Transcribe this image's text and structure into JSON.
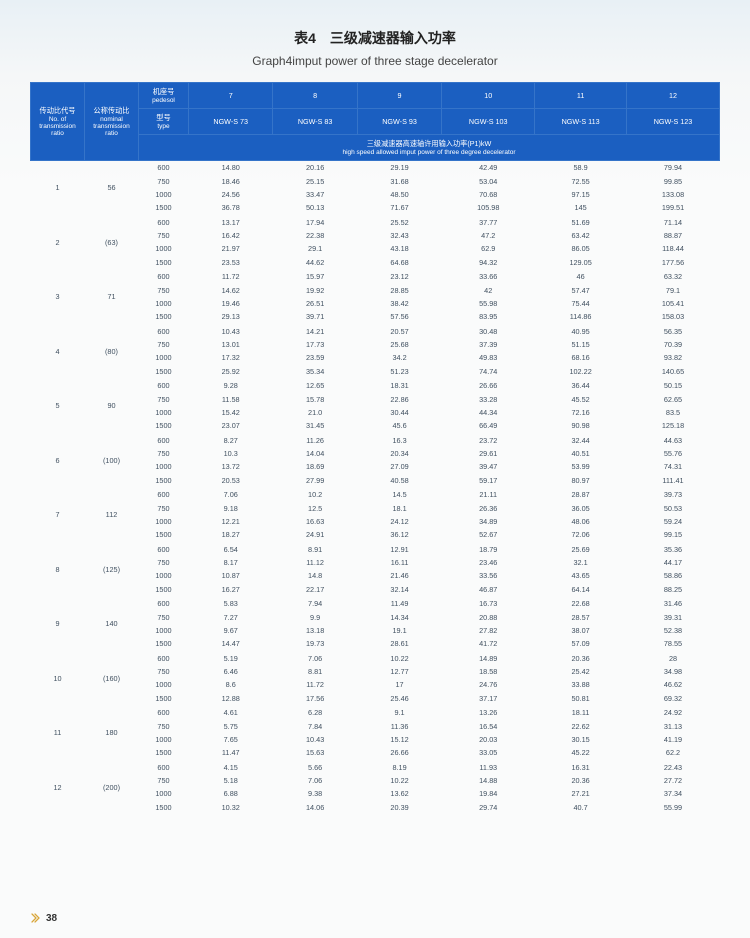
{
  "title_cn": "表4　三级减速器输入功率",
  "title_en": "Graph4imput power of three stage decelerator",
  "header": {
    "col1_cn": "传动比代号",
    "col1_en": "No. of transmission ratio",
    "col2_cn": "公称传动比",
    "col2_en": "nominal transmission ratio",
    "row1_col3_cn": "机座号",
    "row1_col3_en": "pedesol",
    "row2_col3_cn": "型号",
    "row2_col3_en": "type",
    "seat_numbers": [
      "7",
      "8",
      "9",
      "10",
      "11",
      "12"
    ],
    "models": [
      "NGW-S 73",
      "NGW-S 83",
      "NGW-S 93",
      "NGW-S 103",
      "NGW-S 113",
      "NGW-S 123"
    ],
    "band_cn": "三级减速器高速轴许用输入功率(P1)kW",
    "band_en": "high speed allowed imput power of three degree decelerator"
  },
  "groups": [
    {
      "no": "1",
      "ratio": "56",
      "rows": [
        [
          "600",
          "14.80",
          "20.16",
          "29.19",
          "42.49",
          "58.9",
          "79.94"
        ],
        [
          "750",
          "18.46",
          "25.15",
          "31.68",
          "53.04",
          "72.55",
          "99.85"
        ],
        [
          "1000",
          "24.56",
          "33.47",
          "48.50",
          "70.68",
          "97.15",
          "133.08"
        ],
        [
          "1500",
          "36.78",
          "50.13",
          "71.67",
          "105.98",
          "145",
          "199.51"
        ]
      ]
    },
    {
      "no": "2",
      "ratio": "(63)",
      "rows": [
        [
          "600",
          "13.17",
          "17.94",
          "25.52",
          "37.77",
          "51.69",
          "71.14"
        ],
        [
          "750",
          "16.42",
          "22.38",
          "32.43",
          "47.2",
          "63.42",
          "88.87"
        ],
        [
          "1000",
          "21.97",
          "29.1",
          "43.18",
          "62.9",
          "86.05",
          "118.44"
        ],
        [
          "1500",
          "23.53",
          "44.62",
          "64.68",
          "94.32",
          "129.05",
          "177.56"
        ]
      ]
    },
    {
      "no": "3",
      "ratio": "71",
      "rows": [
        [
          "600",
          "11.72",
          "15.97",
          "23.12",
          "33.66",
          "46",
          "63.32"
        ],
        [
          "750",
          "14.62",
          "19.92",
          "28.85",
          "42",
          "57.47",
          "79.1"
        ],
        [
          "1000",
          "19.46",
          "26.51",
          "38.42",
          "55.98",
          "75.44",
          "105.41"
        ],
        [
          "1500",
          "29.13",
          "39.71",
          "57.56",
          "83.95",
          "114.86",
          "158.03"
        ]
      ]
    },
    {
      "no": "4",
      "ratio": "(80)",
      "rows": [
        [
          "600",
          "10.43",
          "14.21",
          "20.57",
          "30.48",
          "40.95",
          "56.35"
        ],
        [
          "750",
          "13.01",
          "17.73",
          "25.68",
          "37.39",
          "51.15",
          "70.39"
        ],
        [
          "1000",
          "17.32",
          "23.59",
          "34.2",
          "49.83",
          "68.16",
          "93.82"
        ],
        [
          "1500",
          "25.92",
          "35.34",
          "51.23",
          "74.74",
          "102.22",
          "140.65"
        ]
      ]
    },
    {
      "no": "5",
      "ratio": "90",
      "rows": [
        [
          "600",
          "9.28",
          "12.65",
          "18.31",
          "26.66",
          "36.44",
          "50.15"
        ],
        [
          "750",
          "11.58",
          "15.78",
          "22.86",
          "33.28",
          "45.52",
          "62.65"
        ],
        [
          "1000",
          "15.42",
          "21.0",
          "30.44",
          "44.34",
          "72.16",
          "83.5"
        ],
        [
          "1500",
          "23.07",
          "31.45",
          "45.6",
          "66.49",
          "90.98",
          "125.18"
        ]
      ]
    },
    {
      "no": "6",
      "ratio": "(100)",
      "rows": [
        [
          "600",
          "8.27",
          "11.26",
          "16.3",
          "23.72",
          "32.44",
          "44.63"
        ],
        [
          "750",
          "10.3",
          "14.04",
          "20.34",
          "29.61",
          "40.51",
          "55.76"
        ],
        [
          "1000",
          "13.72",
          "18.69",
          "27.09",
          "39.47",
          "53.99",
          "74.31"
        ],
        [
          "1500",
          "20.53",
          "27.99",
          "40.58",
          "59.17",
          "80.97",
          "111.41"
        ]
      ]
    },
    {
      "no": "7",
      "ratio": "112",
      "rows": [
        [
          "600",
          "7.06",
          "10.2",
          "14.5",
          "21.11",
          "28.87",
          "39.73"
        ],
        [
          "750",
          "9.18",
          "12.5",
          "18.1",
          "26.36",
          "36.05",
          "50.53"
        ],
        [
          "1000",
          "12.21",
          "16.63",
          "24.12",
          "34.89",
          "48.06",
          "59.24"
        ],
        [
          "1500",
          "18.27",
          "24.91",
          "36.12",
          "52.67",
          "72.06",
          "99.15"
        ]
      ]
    },
    {
      "no": "8",
      "ratio": "(125)",
      "rows": [
        [
          "600",
          "6.54",
          "8.91",
          "12.91",
          "18.79",
          "25.69",
          "35.36"
        ],
        [
          "750",
          "8.17",
          "11.12",
          "16.11",
          "23.46",
          "32.1",
          "44.17"
        ],
        [
          "1000",
          "10.87",
          "14.8",
          "21.46",
          "33.56",
          "43.65",
          "58.86"
        ],
        [
          "1500",
          "16.27",
          "22.17",
          "32.14",
          "46.87",
          "64.14",
          "88.25"
        ]
      ]
    },
    {
      "no": "9",
      "ratio": "140",
      "rows": [
        [
          "600",
          "5.83",
          "7.94",
          "11.49",
          "16.73",
          "22.68",
          "31.46"
        ],
        [
          "750",
          "7.27",
          "9.9",
          "14.34",
          "20.88",
          "28.57",
          "39.31"
        ],
        [
          "1000",
          "9.67",
          "13.18",
          "19.1",
          "27.82",
          "38.07",
          "52.38"
        ],
        [
          "1500",
          "14.47",
          "19.73",
          "28.61",
          "41.72",
          "57.09",
          "78.55"
        ]
      ]
    },
    {
      "no": "10",
      "ratio": "(160)",
      "rows": [
        [
          "600",
          "5.19",
          "7.06",
          "10.22",
          "14.89",
          "20.36",
          "28"
        ],
        [
          "750",
          "6.46",
          "8.81",
          "12.77",
          "18.58",
          "25.42",
          "34.98"
        ],
        [
          "1000",
          "8.6",
          "11.72",
          "17",
          "24.76",
          "33.88",
          "46.62"
        ],
        [
          "1500",
          "12.88",
          "17.56",
          "25.46",
          "37.17",
          "50.81",
          "69.32"
        ]
      ]
    },
    {
      "no": "11",
      "ratio": "180",
      "rows": [
        [
          "600",
          "4.61",
          "6.28",
          "9.1",
          "13.26",
          "18.11",
          "24.92"
        ],
        [
          "750",
          "5.75",
          "7.84",
          "11.36",
          "16.54",
          "22.62",
          "31.13"
        ],
        [
          "1000",
          "7.65",
          "10.43",
          "15.12",
          "20.03",
          "30.15",
          "41.19"
        ],
        [
          "1500",
          "11.47",
          "15.63",
          "26.66",
          "33.05",
          "45.22",
          "62.2"
        ]
      ]
    },
    {
      "no": "12",
      "ratio": "(200)",
      "rows": [
        [
          "600",
          "4.15",
          "5.66",
          "8.19",
          "11.93",
          "16.31",
          "22.43"
        ],
        [
          "750",
          "5.18",
          "7.06",
          "10.22",
          "14.88",
          "20.36",
          "27.72"
        ],
        [
          "1000",
          "6.88",
          "9.38",
          "13.62",
          "19.84",
          "27.21",
          "37.34"
        ],
        [
          "1500",
          "10.32",
          "14.06",
          "20.39",
          "29.74",
          "40.7",
          "55.99"
        ]
      ]
    }
  ],
  "page_number": "38",
  "colors": {
    "header_bg": "#1b5fc1",
    "header_border": "#3574c9",
    "text": "#405060"
  }
}
